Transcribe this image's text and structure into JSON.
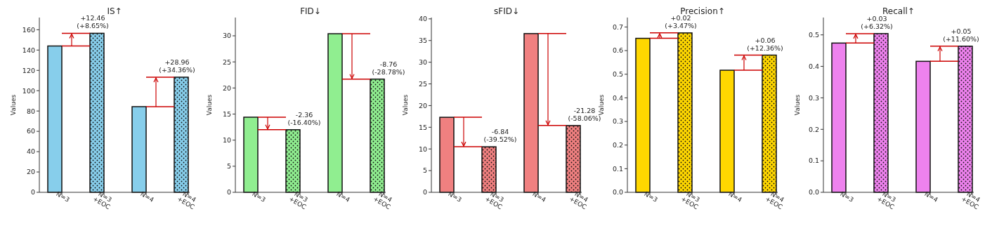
{
  "chart_data": [
    {
      "type": "bar",
      "title": "IS↑",
      "ylabel": "Values",
      "categories": [
        "N=3",
        "N=3\n+EOC",
        "N=4",
        "N=4\n+EOC"
      ],
      "values": [
        144.0,
        156.5,
        84.3,
        113.3
      ],
      "colors": [
        "#87ceeb",
        "#87ceeb",
        "#87ceeb",
        "#87ceeb"
      ],
      "ylim": [
        0,
        172
      ],
      "yticks": [
        0,
        20,
        40,
        60,
        80,
        100,
        120,
        140,
        160
      ],
      "annotations": [
        {
          "text": "+12.46\n(+8.65%)",
          "x": "N=3\n+EOC",
          "y": 156.5
        },
        {
          "text": "+28.96\n(+34.36%)",
          "x": "N=4\n+EOC",
          "y": 113.3
        }
      ]
    },
    {
      "type": "bar",
      "title": "FID↓",
      "ylabel": "Values",
      "categories": [
        "N=3",
        "N=3\n+EOC",
        "N=4",
        "N=4\n+EOC"
      ],
      "values": [
        14.4,
        12.0,
        30.4,
        21.7
      ],
      "colors": [
        "#90ee90",
        "#90ee90",
        "#90ee90",
        "#90ee90"
      ],
      "ylim": [
        0,
        33.5
      ],
      "yticks": [
        0,
        5,
        10,
        15,
        20,
        25,
        30
      ],
      "annotations": [
        {
          "text": "-2.36\n(-16.40%)",
          "x": "N=3\n+EOC",
          "y": 12.0
        },
        {
          "text": "-8.76\n(-28.78%)",
          "x": "N=4\n+EOC",
          "y": 21.7
        }
      ]
    },
    {
      "type": "bar",
      "title": "sFID↓",
      "ylabel": "Values",
      "categories": [
        "N=3",
        "N=3\n+EOC",
        "N=4",
        "N=4\n+EOC"
      ],
      "values": [
        17.3,
        10.5,
        36.6,
        15.4
      ],
      "colors": [
        "#f08080",
        "#f08080",
        "#f08080",
        "#f08080"
      ],
      "ylim": [
        0,
        40.3
      ],
      "yticks": [
        0,
        5,
        10,
        15,
        20,
        25,
        30,
        35,
        40
      ],
      "annotations": [
        {
          "text": "-6.84\n(-39.52%)",
          "x": "N=3\n+EOC",
          "y": 10.5
        },
        {
          "text": "-21.28\n(-58.06%)",
          "x": "N=4\n+EOC",
          "y": 15.4
        }
      ]
    },
    {
      "type": "bar",
      "title": "Precision↑",
      "ylabel": "Values",
      "categories": [
        "N=3",
        "N=3\n+EOC",
        "N=4",
        "N=4\n+EOC"
      ],
      "values": [
        0.652,
        0.675,
        0.517,
        0.581
      ],
      "colors": [
        "#ffd700",
        "#ffd700",
        "#ffd700",
        "#ffd700"
      ],
      "ylim": [
        0,
        0.74
      ],
      "yticks": [
        {
          "value": 0,
          "label": "0.0"
        },
        0.1,
        0.2,
        0.3,
        0.4,
        0.5,
        0.6,
        0.7
      ],
      "annotations": [
        {
          "text": "+0.02\n(+3.47%)",
          "x": "N=3\n+EOC",
          "y": 0.675
        },
        {
          "text": "+0.06\n(+12.36%)",
          "x": "N=4\n+EOC",
          "y": 0.581
        }
      ]
    },
    {
      "type": "bar",
      "title": "Recall↑",
      "ylabel": "Values",
      "categories": [
        "N=3",
        "N=3\n+EOC",
        "N=4",
        "N=4\n+EOC"
      ],
      "values": [
        0.474,
        0.504,
        0.416,
        0.464
      ],
      "colors": [
        "#ee82ee",
        "#ee82ee",
        "#ee82ee",
        "#ee82ee"
      ],
      "ylim": [
        0,
        0.555
      ],
      "yticks": [
        {
          "value": 0,
          "label": "0.0"
        },
        0.1,
        0.2,
        0.3,
        0.4,
        0.5
      ],
      "annotations": [
        {
          "text": "+0.03\n(+6.32%)",
          "x": "N=3\n+EOC",
          "y": 0.504
        },
        {
          "text": "+0.05\n(+11.60%)",
          "x": "N=4\n+EOC",
          "y": 0.464
        }
      ]
    }
  ]
}
